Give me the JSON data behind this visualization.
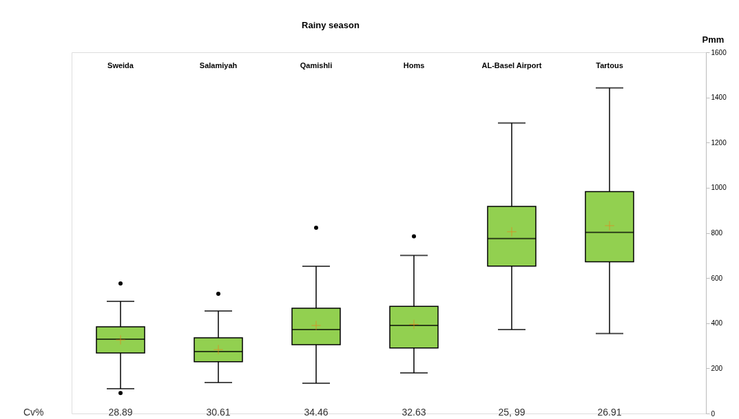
{
  "chart_data": {
    "type": "box",
    "title": "Rainy season",
    "ylabel": "Pmm",
    "categories": [
      "Sweida",
      "Salamiyah",
      "Qamishli",
      "Homs",
      "AL-Basel Airport",
      "Tartous"
    ],
    "boxes": [
      {
        "low": 110,
        "q1": 268,
        "median": 329,
        "q3": 384,
        "high": 497,
        "mean": 326,
        "outliers": [
          576,
          91
        ]
      },
      {
        "low": 137,
        "q1": 229,
        "median": 274,
        "q3": 335,
        "high": 454,
        "mean": 283,
        "outliers": [
          530
        ]
      },
      {
        "low": 134,
        "q1": 305,
        "median": 372,
        "q3": 466,
        "high": 652,
        "mean": 390,
        "outliers": [
          823
        ]
      },
      {
        "low": 180,
        "q1": 290,
        "median": 390,
        "q3": 475,
        "high": 700,
        "mean": 395,
        "outliers": [
          785
        ]
      },
      {
        "low": 372,
        "q1": 653,
        "median": 775,
        "q3": 917,
        "high": 1287,
        "mean": 805
      },
      {
        "low": 354,
        "q1": 672,
        "median": 802,
        "q3": 983,
        "high": 1442,
        "mean": 832
      }
    ],
    "color": "#92d050",
    "ylim": [
      0,
      1600
    ],
    "yticks": [
      0,
      200,
      400,
      600,
      800,
      1000,
      1200,
      1400,
      1600
    ],
    "grid": false,
    "annotations": [
      "Cv%",
      "28.89",
      "30.61",
      "34.46",
      "32.63",
      "25, 99",
      "26.91"
    ]
  }
}
